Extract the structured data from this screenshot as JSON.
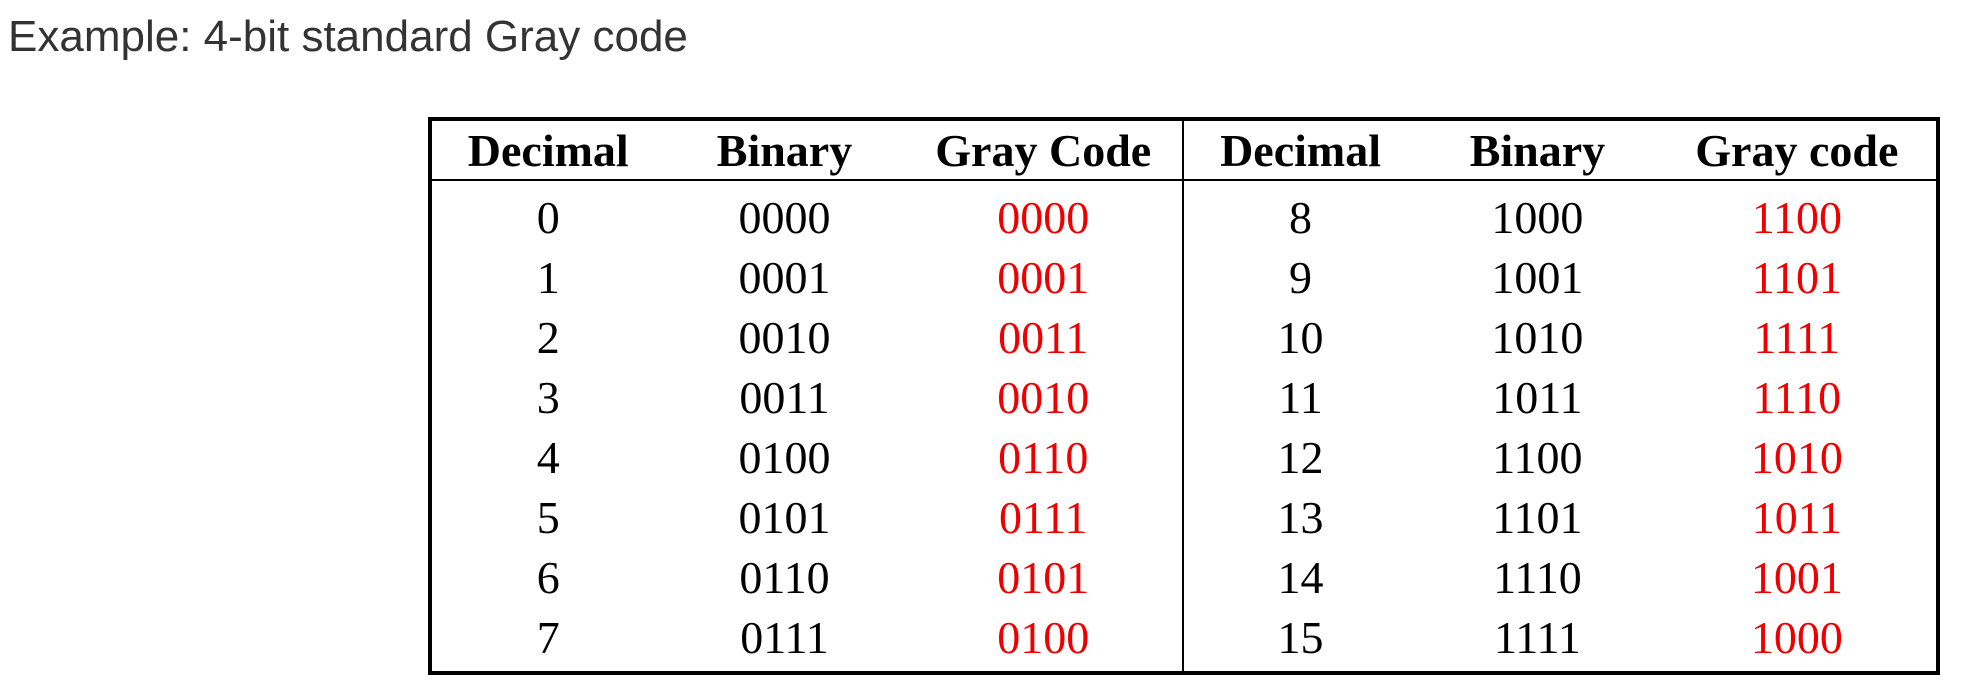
{
  "title": "Example: 4-bit standard Gray code",
  "colors": {
    "title_text": "#333333",
    "gray_code_text": "#ee0000",
    "table_border": "#000000"
  },
  "table": {
    "left": {
      "headers": [
        "Decimal",
        "Binary",
        "Gray Code"
      ],
      "rows": [
        {
          "decimal": "0",
          "binary": "0000",
          "gray": "0000"
        },
        {
          "decimal": "1",
          "binary": "0001",
          "gray": "0001"
        },
        {
          "decimal": "2",
          "binary": "0010",
          "gray": "0011"
        },
        {
          "decimal": "3",
          "binary": "0011",
          "gray": "0010"
        },
        {
          "decimal": "4",
          "binary": "0100",
          "gray": "0110"
        },
        {
          "decimal": "5",
          "binary": "0101",
          "gray": "0111"
        },
        {
          "decimal": "6",
          "binary": "0110",
          "gray": "0101"
        },
        {
          "decimal": "7",
          "binary": "0111",
          "gray": "0100"
        }
      ]
    },
    "right": {
      "headers": [
        "Decimal",
        "Binary",
        "Gray code"
      ],
      "rows": [
        {
          "decimal": "8",
          "binary": "1000",
          "gray": "1100"
        },
        {
          "decimal": "9",
          "binary": "1001",
          "gray": "1101"
        },
        {
          "decimal": "10",
          "binary": "1010",
          "gray": "1111"
        },
        {
          "decimal": "11",
          "binary": "1011",
          "gray": "1110"
        },
        {
          "decimal": "12",
          "binary": "1100",
          "gray": "1010"
        },
        {
          "decimal": "13",
          "binary": "1101",
          "gray": "1011"
        },
        {
          "decimal": "14",
          "binary": "1110",
          "gray": "1001"
        },
        {
          "decimal": "15",
          "binary": "1111",
          "gray": "1000"
        }
      ]
    }
  }
}
